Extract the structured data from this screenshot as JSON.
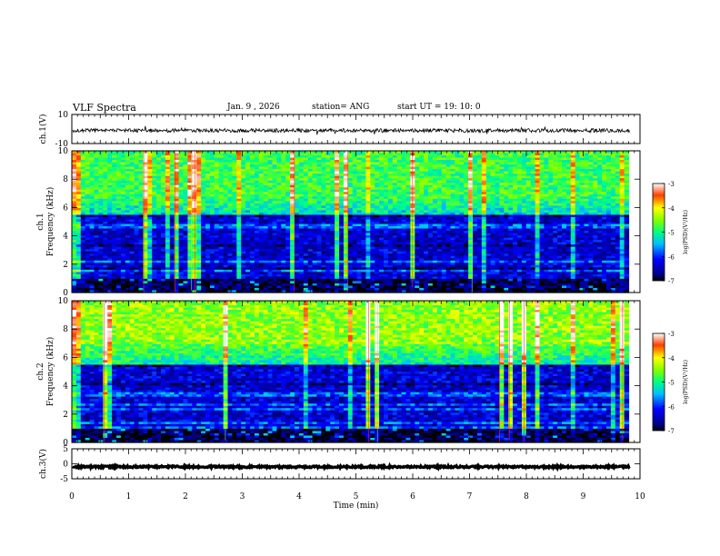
{
  "header": {
    "title": "VLF Spectra",
    "date": "Jan. 9 , 2026",
    "station": "station= ANG",
    "start": "start UT = 19: 10: 0"
  },
  "chart_data": [
    {
      "type": "line",
      "name": "ch1-waveform",
      "ylabel": "ch.1(V)",
      "ylim": [
        -10,
        10
      ],
      "yticks": [
        10,
        -10
      ],
      "xlim": [
        0,
        10
      ],
      "mean_level": -1
    },
    {
      "type": "heatmap",
      "name": "ch1-spectrogram",
      "ylabel_line1": "ch.1",
      "ylabel_line2": "Frequency (kHz)",
      "ylim": [
        0,
        10
      ],
      "yticks": [
        0,
        2,
        4,
        6,
        8,
        10
      ],
      "xlim": [
        0,
        9.8
      ],
      "colorbar": {
        "label": "log(PSD)(V²/Hz)",
        "range": [
          -7,
          -3
        ],
        "ticks": [
          -3,
          -4,
          -5,
          -6,
          -7
        ]
      }
    },
    {
      "type": "heatmap",
      "name": "ch2-spectrogram",
      "ylabel_line1": "ch.2",
      "ylabel_line2": "Frequency (kHz)",
      "ylim": [
        0,
        10
      ],
      "yticks": [
        0,
        2,
        4,
        6,
        8,
        10
      ],
      "xlim": [
        0,
        9.8
      ],
      "colorbar": {
        "label": "log(PSD)(V²/Hz)",
        "range": [
          -7,
          -3
        ],
        "ticks": [
          -3,
          -4,
          -5,
          -6,
          -7
        ]
      }
    },
    {
      "type": "line",
      "name": "ch3-waveform",
      "ylabel": "ch.3(V)",
      "ylim": [
        -5,
        5
      ],
      "yticks": [
        5,
        0,
        -5
      ],
      "xlim": [
        0,
        10
      ],
      "mean_level": -1
    },
    {
      "type": "axis",
      "name": "time-axis",
      "xlabel": "Time (min)",
      "xticks": [
        "0",
        "1",
        "2",
        "3",
        "4",
        "5",
        "6",
        "7",
        "8",
        "9",
        "10"
      ]
    }
  ]
}
